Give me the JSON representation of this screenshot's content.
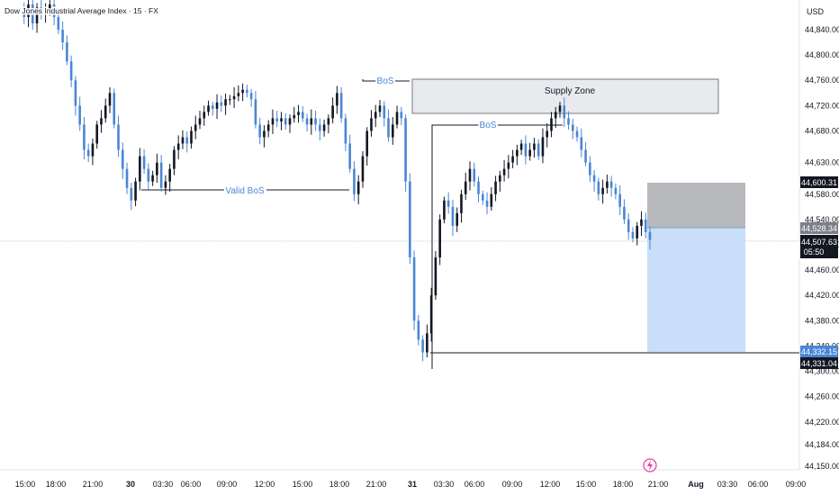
{
  "header": {
    "symbol_title": "Dow Jones Industrial Average Index · 15 · FX"
  },
  "currency": "USD",
  "colors": {
    "up": "#131722",
    "down": "#4a86d6",
    "accent": "#4a86d6",
    "flash_icon": "#e040a8"
  },
  "chart_data": {
    "type": "candlestick",
    "y_ticks": [
      "44,840.00",
      "44,800.00",
      "44,760.00",
      "44,720.00",
      "44,680.00",
      "44,630.00",
      "44,580.00",
      "44,540.00",
      "44,500.00",
      "44,460.00",
      "44,420.00",
      "44,380.00",
      "44,340.00",
      "44,300.00",
      "44,260.00",
      "44,220.00",
      "44,184.00",
      "44,150.00"
    ],
    "x_ticks": [
      "15:00",
      "18:00",
      "21:00",
      "30",
      "03:30",
      "06:00",
      "09:00",
      "12:00",
      "15:00",
      "18:00",
      "21:00",
      "31",
      "03:30",
      "06:00",
      "09:00",
      "12:00",
      "15:00",
      "18:00",
      "21:00",
      "Aug",
      "03:30",
      "06:00",
      "09:00"
    ],
    "price_tags": {
      "stop": "44,600.31",
      "entry": "44,528.34",
      "current": "44,507.63",
      "countdown": "05:50",
      "target": "44,332.15",
      "low_line": "44,331.04"
    },
    "annotations": {
      "supply_zone": "Supply Zone",
      "bos_1": "BoS",
      "bos_2": "BoS",
      "valid_bos": "Valid BoS"
    },
    "close_path": [
      44870,
      44860,
      44880,
      44850,
      44875,
      44865,
      44870,
      44880,
      44860,
      44840,
      44820,
      44790,
      44760,
      44720,
      44690,
      44650,
      44640,
      44660,
      44690,
      44700,
      44720,
      44740,
      44690,
      44650,
      44620,
      44590,
      44570,
      44600,
      44640,
      44620,
      44600,
      44610,
      44630,
      44590,
      44600,
      44620,
      44650,
      44660,
      44670,
      44660,
      44680,
      44690,
      44700,
      44710,
      44720,
      44715,
      44725,
      44720,
      44730,
      44730,
      44735,
      44740,
      44745,
      44740,
      44730,
      44690,
      44670,
      44680,
      44690,
      44700,
      44695,
      44700,
      44690,
      44700,
      44705,
      44710,
      44700,
      44690,
      44700,
      44690,
      44680,
      44690,
      44700,
      44720,
      44740,
      44700,
      44660,
      44620,
      44580,
      44600,
      44640,
      44680,
      44700,
      44710,
      44720,
      44700,
      44670,
      44690,
      44710,
      44700,
      44600,
      44480,
      44380,
      44350,
      44330,
      44360,
      44420,
      44480,
      44540,
      44570,
      44560,
      44530,
      44550,
      44580,
      44600,
      44620,
      44600,
      44580,
      44570,
      44560,
      44580,
      44600,
      44610,
      44620,
      44630,
      44640,
      44650,
      44660,
      44640,
      44650,
      44660,
      44640,
      44670,
      44680,
      44700,
      44710,
      44720,
      44700,
      44690,
      44680,
      44670,
      44650,
      44630,
      44610,
      44600,
      44580,
      44590,
      44600,
      44590,
      44580,
      44560,
      44540,
      44520,
      44510,
      44530,
      44540,
      44520,
      44507.63
    ]
  }
}
